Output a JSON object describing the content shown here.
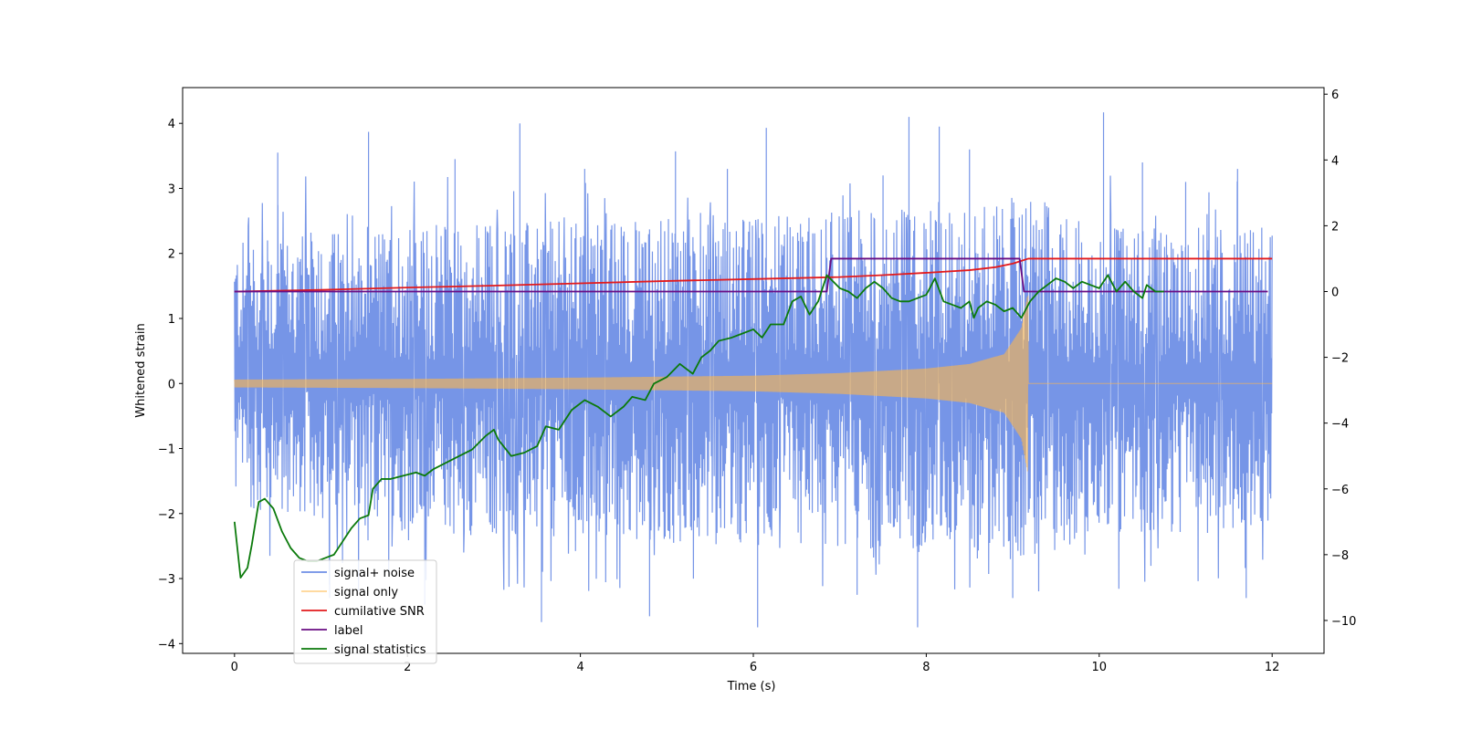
{
  "chart_data": {
    "type": "line",
    "title": "",
    "xlabel": "Time (s)",
    "ylabel": "Whitened strain",
    "y2label": "",
    "xlim": [
      -0.6,
      12.6
    ],
    "ylim": [
      -4.15,
      4.55
    ],
    "y2lim": [
      -11.0,
      6.2
    ],
    "xticks": [
      0,
      2,
      4,
      6,
      8,
      10,
      12
    ],
    "yticks": [
      -4,
      -3,
      -2,
      -1,
      0,
      1,
      2,
      3,
      4
    ],
    "y2ticks": [
      -10,
      -8,
      -6,
      -4,
      -2,
      0,
      2,
      4,
      6
    ],
    "tick_labels": {
      "x": [
        "0",
        "2",
        "4",
        "6",
        "8",
        "10",
        "12"
      ],
      "y": [
        "−4",
        "−3",
        "−2",
        "−1",
        "0",
        "1",
        "2",
        "3",
        "4"
      ],
      "y2": [
        "−10",
        "−8",
        "−6",
        "−4",
        "−2",
        "0",
        "2",
        "4",
        "6"
      ]
    },
    "legend_position": "lower-left",
    "series": [
      {
        "name": "signal+ noise",
        "axis": "left",
        "color": "#6f8fe6",
        "kind": "noise",
        "x_range": [
          0,
          12
        ],
        "envelope_upper": [
          [
            0,
            2.2
          ],
          [
            2,
            2.5
          ],
          [
            4,
            2.5
          ],
          [
            6,
            2.6
          ],
          [
            8,
            2.7
          ],
          [
            9.2,
            2.9
          ],
          [
            10,
            2.4
          ],
          [
            12,
            2.4
          ]
        ],
        "envelope_lower": [
          [
            0,
            -1.9
          ],
          [
            2,
            -2.3
          ],
          [
            4,
            -2.4
          ],
          [
            6,
            -2.5
          ],
          [
            8,
            -2.6
          ],
          [
            9.2,
            -2.8
          ],
          [
            10,
            -2.3
          ],
          [
            12,
            -2.3
          ]
        ],
        "spikes": [
          [
            0.5,
            3.55
          ],
          [
            1.55,
            3.87
          ],
          [
            3.3,
            4.0
          ],
          [
            3.55,
            -3.67
          ],
          [
            4.8,
            -3.58
          ],
          [
            5.1,
            3.57
          ],
          [
            6.15,
            3.93
          ],
          [
            6.05,
            -3.75
          ],
          [
            7.2,
            -3.25
          ],
          [
            7.8,
            4.1
          ],
          [
            7.9,
            -3.75
          ],
          [
            8.15,
            3.95
          ],
          [
            10.05,
            4.17
          ],
          [
            11.0,
            3.1
          ],
          [
            11.6,
            3.3
          ],
          [
            4.05,
            3.3
          ],
          [
            2.55,
            3.45
          ],
          [
            8.5,
            3.6
          ],
          [
            9.0,
            -3.3
          ],
          [
            11.7,
            -3.3
          ],
          [
            1.1,
            -3.3
          ],
          [
            2.2,
            -3.4
          ],
          [
            5.7,
            3.3
          ],
          [
            7.5,
            3.2
          ],
          [
            10.5,
            3.4
          ]
        ]
      },
      {
        "name": "signal only",
        "axis": "left",
        "color": "#ffb84a",
        "kind": "chirp",
        "x_range": [
          0,
          12
        ],
        "merger_time": 9.18,
        "amplitude": [
          [
            0,
            0.06
          ],
          [
            2,
            0.07
          ],
          [
            4,
            0.09
          ],
          [
            6,
            0.12
          ],
          [
            7,
            0.16
          ],
          [
            8,
            0.23
          ],
          [
            8.5,
            0.3
          ],
          [
            8.9,
            0.45
          ],
          [
            9.1,
            0.85
          ],
          [
            9.17,
            1.35
          ]
        ]
      },
      {
        "name": "cumilative SNR",
        "axis": "right",
        "color": "#e31a1c",
        "points": [
          [
            0,
            0.0
          ],
          [
            1,
            0.05
          ],
          [
            2,
            0.12
          ],
          [
            3,
            0.18
          ],
          [
            4,
            0.25
          ],
          [
            5,
            0.32
          ],
          [
            6,
            0.38
          ],
          [
            7,
            0.44
          ],
          [
            7.5,
            0.5
          ],
          [
            8,
            0.57
          ],
          [
            8.5,
            0.65
          ],
          [
            8.8,
            0.74
          ],
          [
            9.0,
            0.85
          ],
          [
            9.12,
            0.95
          ],
          [
            9.18,
            1.0
          ],
          [
            10,
            1.0
          ],
          [
            11,
            1.0
          ],
          [
            12,
            1.0
          ]
        ]
      },
      {
        "name": "label",
        "axis": "right",
        "color": "#6a0d83",
        "points": [
          [
            0,
            0
          ],
          [
            6.85,
            0
          ],
          [
            6.9,
            1.0
          ],
          [
            9.08,
            1.0
          ],
          [
            9.13,
            0
          ],
          [
            11.95,
            0
          ]
        ]
      },
      {
        "name": "signal statistics",
        "axis": "right",
        "color": "#0b7a0b",
        "points": [
          [
            0,
            -7.0
          ],
          [
            0.07,
            -8.7
          ],
          [
            0.15,
            -8.4
          ],
          [
            0.2,
            -7.7
          ],
          [
            0.28,
            -6.4
          ],
          [
            0.35,
            -6.3
          ],
          [
            0.45,
            -6.6
          ],
          [
            0.55,
            -7.3
          ],
          [
            0.65,
            -7.8
          ],
          [
            0.75,
            -8.1
          ],
          [
            0.85,
            -8.2
          ],
          [
            0.95,
            -8.2
          ],
          [
            1.05,
            -8.1
          ],
          [
            1.15,
            -8.0
          ],
          [
            1.25,
            -7.6
          ],
          [
            1.35,
            -7.2
          ],
          [
            1.45,
            -6.9
          ],
          [
            1.55,
            -6.8
          ],
          [
            1.6,
            -6.0
          ],
          [
            1.7,
            -5.7
          ],
          [
            1.8,
            -5.7
          ],
          [
            1.95,
            -5.6
          ],
          [
            2.1,
            -5.5
          ],
          [
            2.2,
            -5.6
          ],
          [
            2.3,
            -5.4
          ],
          [
            2.45,
            -5.2
          ],
          [
            2.6,
            -5.0
          ],
          [
            2.75,
            -4.8
          ],
          [
            2.9,
            -4.4
          ],
          [
            3.0,
            -4.2
          ],
          [
            3.05,
            -4.5
          ],
          [
            3.2,
            -5.0
          ],
          [
            3.35,
            -4.9
          ],
          [
            3.5,
            -4.7
          ],
          [
            3.6,
            -4.1
          ],
          [
            3.75,
            -4.2
          ],
          [
            3.9,
            -3.6
          ],
          [
            4.05,
            -3.3
          ],
          [
            4.2,
            -3.5
          ],
          [
            4.35,
            -3.8
          ],
          [
            4.5,
            -3.5
          ],
          [
            4.6,
            -3.2
          ],
          [
            4.75,
            -3.3
          ],
          [
            4.85,
            -2.8
          ],
          [
            5.0,
            -2.6
          ],
          [
            5.15,
            -2.2
          ],
          [
            5.3,
            -2.5
          ],
          [
            5.4,
            -2.0
          ],
          [
            5.5,
            -1.8
          ],
          [
            5.6,
            -1.5
          ],
          [
            5.75,
            -1.4
          ],
          [
            5.85,
            -1.3
          ],
          [
            6.0,
            -1.15
          ],
          [
            6.1,
            -1.4
          ],
          [
            6.2,
            -1.0
          ],
          [
            6.35,
            -1.0
          ],
          [
            6.45,
            -0.3
          ],
          [
            6.55,
            -0.15
          ],
          [
            6.65,
            -0.7
          ],
          [
            6.75,
            -0.3
          ],
          [
            6.85,
            0.5
          ],
          [
            7.0,
            0.1
          ],
          [
            7.1,
            0.0
          ],
          [
            7.2,
            -0.2
          ],
          [
            7.3,
            0.1
          ],
          [
            7.4,
            0.3
          ],
          [
            7.5,
            0.1
          ],
          [
            7.6,
            -0.2
          ],
          [
            7.7,
            -0.3
          ],
          [
            7.8,
            -0.3
          ],
          [
            7.9,
            -0.2
          ],
          [
            8.0,
            -0.1
          ],
          [
            8.1,
            0.4
          ],
          [
            8.2,
            -0.3
          ],
          [
            8.3,
            -0.4
          ],
          [
            8.4,
            -0.5
          ],
          [
            8.5,
            -0.3
          ],
          [
            8.55,
            -0.8
          ],
          [
            8.6,
            -0.5
          ],
          [
            8.7,
            -0.3
          ],
          [
            8.8,
            -0.4
          ],
          [
            8.9,
            -0.6
          ],
          [
            9.0,
            -0.5
          ],
          [
            9.1,
            -0.8
          ],
          [
            9.2,
            -0.3
          ],
          [
            9.3,
            0.0
          ],
          [
            9.4,
            0.2
          ],
          [
            9.5,
            0.4
          ],
          [
            9.6,
            0.3
          ],
          [
            9.7,
            0.1
          ],
          [
            9.8,
            0.3
          ],
          [
            9.9,
            0.2
          ],
          [
            10.0,
            0.1
          ],
          [
            10.1,
            0.5
          ],
          [
            10.2,
            0.0
          ],
          [
            10.3,
            0.3
          ],
          [
            10.4,
            0.0
          ],
          [
            10.5,
            -0.2
          ],
          [
            10.55,
            0.2
          ],
          [
            10.65,
            0.0
          ],
          [
            10.75,
            0.0
          ]
        ]
      }
    ]
  },
  "legend": {
    "items": [
      {
        "label": "signal+ noise",
        "color": "#6f8fe6"
      },
      {
        "label": "signal only",
        "color": "#ffb84a"
      },
      {
        "label": "cumilative SNR",
        "color": "#e31a1c"
      },
      {
        "label": "label",
        "color": "#6a0d83"
      },
      {
        "label": "signal statistics",
        "color": "#0b7a0b"
      }
    ]
  }
}
